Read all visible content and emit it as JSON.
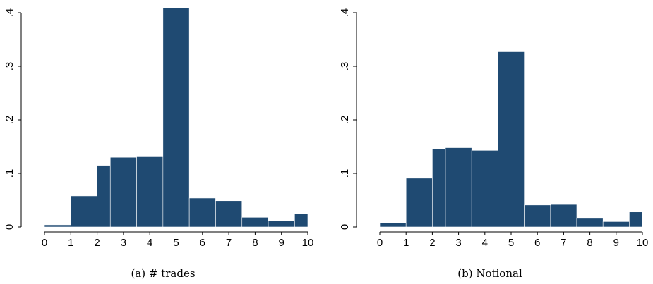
{
  "chart_data": [
    {
      "type": "bar",
      "caption": "(a) # trades",
      "bar_color": "#1f4a72",
      "bins": [
        {
          "x0": 0,
          "x1": 1,
          "value": 0.004
        },
        {
          "x0": 1,
          "x1": 2,
          "value": 0.058
        },
        {
          "x0": 2,
          "x1": 2.5,
          "value": 0.115
        },
        {
          "x0": 2.5,
          "x1": 3.5,
          "value": 0.13
        },
        {
          "x0": 3.5,
          "x1": 4.5,
          "value": 0.131
        },
        {
          "x0": 4.5,
          "x1": 5.5,
          "value": 0.409
        },
        {
          "x0": 5.5,
          "x1": 6.5,
          "value": 0.054
        },
        {
          "x0": 6.5,
          "x1": 7.5,
          "value": 0.049
        },
        {
          "x0": 7.5,
          "x1": 8.5,
          "value": 0.018
        },
        {
          "x0": 8.5,
          "x1": 9.5,
          "value": 0.011
        },
        {
          "x0": 9.5,
          "x1": 10,
          "value": 0.025
        }
      ],
      "xlim": [
        0,
        10
      ],
      "ylim": [
        0,
        0.4
      ],
      "xticks": [
        "0",
        "1",
        "2",
        "3",
        "4",
        "5",
        "6",
        "7",
        "8",
        "9",
        "10"
      ],
      "yticks": [
        "0",
        ".1",
        ".2",
        ".3",
        ".4"
      ]
    },
    {
      "type": "bar",
      "caption": "(b) Notional",
      "bar_color": "#1f4a72",
      "bins": [
        {
          "x0": 0,
          "x1": 1,
          "value": 0.007
        },
        {
          "x0": 1,
          "x1": 2,
          "value": 0.091
        },
        {
          "x0": 2,
          "x1": 2.5,
          "value": 0.146
        },
        {
          "x0": 2.5,
          "x1": 3.5,
          "value": 0.148
        },
        {
          "x0": 3.5,
          "x1": 4.5,
          "value": 0.143
        },
        {
          "x0": 4.5,
          "x1": 5.5,
          "value": 0.327
        },
        {
          "x0": 5.5,
          "x1": 6.5,
          "value": 0.041
        },
        {
          "x0": 6.5,
          "x1": 7.5,
          "value": 0.042
        },
        {
          "x0": 7.5,
          "x1": 8.5,
          "value": 0.016
        },
        {
          "x0": 8.5,
          "x1": 9.5,
          "value": 0.01
        },
        {
          "x0": 9.5,
          "x1": 10,
          "value": 0.028
        }
      ],
      "xlim": [
        0,
        10
      ],
      "ylim": [
        0,
        0.4
      ],
      "xticks": [
        "0",
        "1",
        "2",
        "3",
        "4",
        "5",
        "6",
        "7",
        "8",
        "9",
        "10"
      ],
      "yticks": [
        "0",
        ".1",
        ".2",
        ".3",
        ".4"
      ]
    }
  ]
}
